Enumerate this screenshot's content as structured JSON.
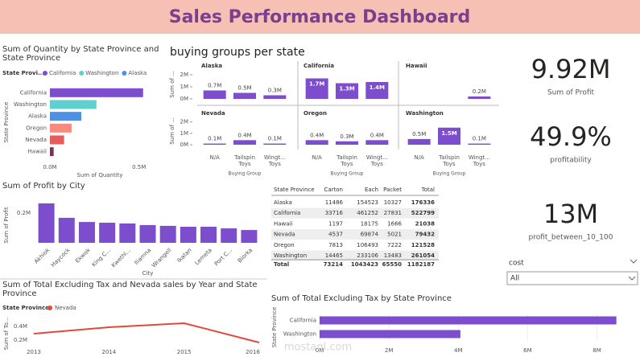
{
  "title": "Sales Performance Dashboard",
  "chart_data": [
    {
      "type": "hbar",
      "title": "Sum of Quantity by State Province and State Province",
      "legend_title": "State Provi...",
      "legend": [
        {
          "name": "California",
          "color": "#7c4dcc"
        },
        {
          "name": "Washington",
          "color": "#5fd0cf"
        },
        {
          "name": "Alaska",
          "color": "#4c91e6"
        }
      ],
      "categories": [
        "California",
        "Washington",
        "Alaska",
        "Oregon",
        "Nevada",
        "Hawaii"
      ],
      "values": [
        522799,
        261054,
        176336,
        121528,
        79432,
        21038
      ],
      "colors": [
        "#7c4dcc",
        "#5fd0cf",
        "#4c91e6",
        "#f98b7c",
        "#e85b5b",
        "#7a3355"
      ],
      "xlim": [
        0,
        560000
      ],
      "xticks": [
        {
          "value": 0,
          "label": "0.0M"
        },
        {
          "value": 500000,
          "label": "0.5M"
        }
      ],
      "x_label": "Sum of Quantity",
      "y_label": "State Province"
    },
    {
      "type": "bar-multiples",
      "title": "buying groups per state",
      "color": "#7c4dcc",
      "categories": [
        "N/A",
        "Tailspin Toys",
        "Wingt... Toys"
      ],
      "panels": [
        {
          "title": "Alaska",
          "values": [
            700000,
            500000,
            300000
          ],
          "value_labels": [
            "0.7M",
            "0.5M",
            "0.3M"
          ]
        },
        {
          "title": "California",
          "values": [
            1700000,
            1300000,
            1400000
          ],
          "value_labels": [
            "1.7M",
            "1.3M",
            "1.4M"
          ]
        },
        {
          "title": "Hawaii",
          "values": [
            null,
            null,
            200000
          ],
          "value_labels": [
            null,
            null,
            "0.2M"
          ]
        },
        {
          "title": "Nevada",
          "values": [
            100000,
            400000,
            100000
          ],
          "value_labels": [
            "0.1M",
            "0.4M",
            "0.1M"
          ]
        },
        {
          "title": "Oregon",
          "values": [
            400000,
            300000,
            400000
          ],
          "value_labels": [
            "0.4M",
            "0.3M",
            "0.4M"
          ]
        },
        {
          "title": "Washington",
          "values": [
            500000,
            1500000,
            100000
          ],
          "value_labels": [
            "0.5M",
            "1.5M",
            "0.1M"
          ]
        }
      ],
      "ylim": [
        0,
        2400000
      ],
      "yticks": [
        {
          "value": 0,
          "label": "0M"
        },
        {
          "value": 1000000,
          "label": "1M"
        },
        {
          "value": 2000000,
          "label": "2M"
        }
      ],
      "x_label": "Buying Group",
      "y_label": "Sum of ..."
    },
    {
      "type": "column",
      "title": "Sum of Profit by City",
      "color": "#7c4dcc",
      "categories": [
        "Akhiok",
        "Haycock",
        "Ekwok",
        "King C...",
        "Kwethl...",
        "Iliamna",
        "Wrangell",
        "Ikatan",
        "Lemeta",
        "Port C...",
        "Biorka"
      ],
      "values": [
        265000,
        168000,
        140000,
        135000,
        130000,
        119000,
        114000,
        108000,
        108000,
        97000,
        86000
      ],
      "ylim": [
        0,
        300000
      ],
      "yticks": [
        {
          "value": 200000,
          "label": "0.2M"
        }
      ],
      "x_label": "City",
      "y_label": "Sum of Profit"
    },
    {
      "type": "line",
      "title": "Sum of Total Excluding Tax and Nevada sales by Year and State Province",
      "legend_title": "State Province",
      "x": [
        2013,
        2014,
        2015,
        2016
      ],
      "xlim": [
        2013,
        2016
      ],
      "xticks": [
        2013,
        2014,
        2015,
        2016
      ],
      "series": [
        {
          "name": "Nevada",
          "color": "#e04a3a",
          "values": [
            294000,
            388000,
            447000,
            165000
          ]
        }
      ],
      "ylim": [
        0,
        500000
      ],
      "yticks": [
        {
          "value": 200000,
          "label": "0.2M"
        },
        {
          "value": 400000,
          "label": "0.4M"
        }
      ],
      "y_label": "Sum of To..."
    },
    {
      "type": "hbar",
      "title": "Sum of Total Excluding Tax by State Province",
      "color": "#7c4dcc",
      "categories": [
        "California",
        "Washington"
      ],
      "values": [
        8560000,
        4060000
      ],
      "xlim": [
        0,
        8800000
      ],
      "xticks": [
        {
          "value": 0,
          "label": "0M"
        },
        {
          "value": 2000000,
          "label": "2M"
        },
        {
          "value": 4000000,
          "label": "4M"
        },
        {
          "value": 6000000,
          "label": "6M"
        },
        {
          "value": 8000000,
          "label": "8M"
        }
      ],
      "y_label": "State Province"
    }
  ],
  "table": {
    "header": [
      "State Province",
      "Carton",
      "Each",
      "Packet",
      "Total"
    ],
    "rows": [
      [
        "Alaska",
        "11486",
        "154523",
        "10327",
        "176336"
      ],
      [
        "California",
        "33716",
        "461252",
        "27831",
        "522799"
      ],
      [
        "Hawaii",
        "1197",
        "18175",
        "1666",
        "21038"
      ],
      [
        "Nevada",
        "4537",
        "69874",
        "5021",
        "79432"
      ],
      [
        "Oregon",
        "7813",
        "106493",
        "7222",
        "121528"
      ],
      [
        "Washington",
        "14465",
        "233106",
        "13483",
        "261054"
      ]
    ],
    "total": [
      "Total",
      "73214",
      "1043423",
      "65550",
      "1182187"
    ]
  },
  "cards": [
    {
      "value": "9.92M",
      "label": "Sum of Profit"
    },
    {
      "value": "49.9%",
      "label": "profitability"
    },
    {
      "value": "13M",
      "label": "profit_between_10_100"
    }
  ],
  "slicer": {
    "title": "cost",
    "selected": "All"
  },
  "watermark": "mostaql.com"
}
